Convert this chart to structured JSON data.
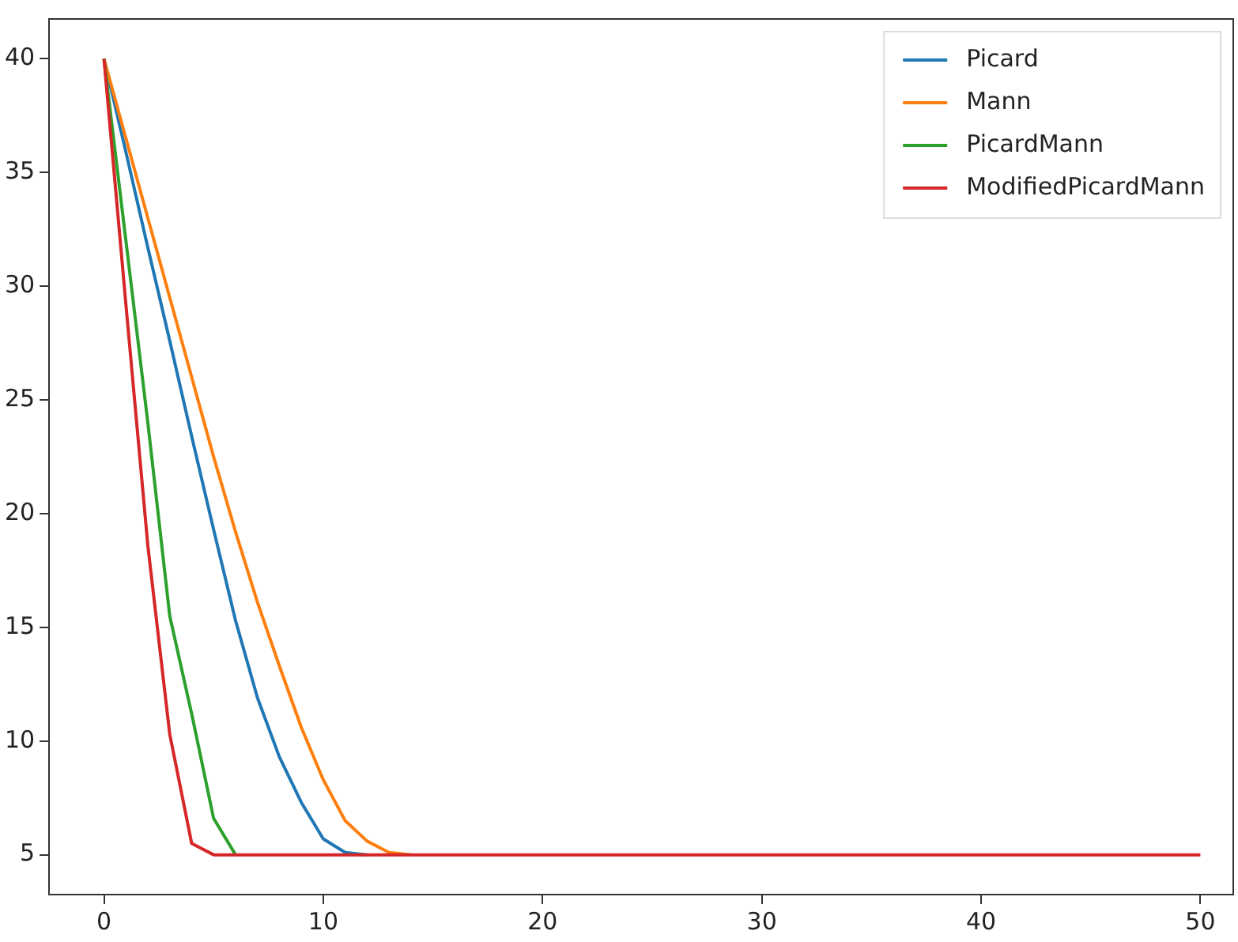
{
  "chart_data": {
    "type": "line",
    "x": [
      0,
      1,
      2,
      3,
      4,
      5,
      6,
      7,
      8,
      9,
      10,
      11,
      12,
      13,
      14,
      15,
      16,
      17,
      18,
      19,
      20,
      21,
      22,
      23,
      24,
      25,
      26,
      27,
      28,
      29,
      30,
      31,
      32,
      33,
      34,
      35,
      36,
      37,
      38,
      39,
      40,
      41,
      42,
      43,
      44,
      45,
      46,
      47,
      48,
      49,
      50
    ],
    "series": [
      {
        "name": "Picard",
        "color": "#1f77b4",
        "values": [
          40,
          35.9,
          31.7,
          27.6,
          23.4,
          19.3,
          15.3,
          11.9,
          9.3,
          7.3,
          5.7,
          5.1,
          5,
          null,
          null,
          null,
          null,
          null,
          null,
          null,
          null,
          null,
          null,
          null,
          null,
          null,
          null,
          null,
          null,
          null,
          null,
          null,
          null,
          null,
          null,
          null,
          null,
          null,
          null,
          null,
          null,
          null,
          null,
          null,
          null,
          null,
          null,
          null,
          null,
          null,
          null
        ]
      },
      {
        "name": "Mann",
        "color": "#ff7f0e",
        "values": [
          40,
          36.5,
          33,
          29.5,
          26,
          22.5,
          19.2,
          16.1,
          13.3,
          10.6,
          8.3,
          6.5,
          5.6,
          5.1,
          5,
          null,
          null,
          null,
          null,
          null,
          null,
          null,
          null,
          null,
          null,
          null,
          null,
          null,
          null,
          null,
          null,
          null,
          null,
          null,
          null,
          null,
          null,
          null,
          null,
          null,
          null,
          null,
          null,
          null,
          null,
          null,
          null,
          null,
          null,
          null,
          null
        ]
      },
      {
        "name": "PicardMann",
        "color": "#2ca02c",
        "values": [
          40,
          32,
          24,
          15.5,
          11.2,
          6.6,
          5,
          null,
          null,
          null,
          null,
          null,
          null,
          null,
          null,
          null,
          null,
          null,
          null,
          null,
          null,
          null,
          null,
          null,
          null,
          null,
          null,
          null,
          null,
          null,
          null,
          null,
          null,
          null,
          null,
          null,
          null,
          null,
          null,
          null,
          null,
          null,
          null,
          null,
          null,
          null,
          null,
          null,
          null,
          null,
          null
        ]
      },
      {
        "name": "ModifiedPicardMann",
        "color": "#d62728",
        "values": [
          40,
          29.2,
          18.6,
          10.3,
          5.5,
          5,
          5,
          5,
          5,
          5,
          5,
          5,
          5,
          5,
          5,
          5,
          5,
          5,
          5,
          5,
          5,
          5,
          5,
          5,
          5,
          5,
          5,
          5,
          5,
          5,
          5,
          5,
          5,
          5,
          5,
          5,
          5,
          5,
          5,
          5,
          5,
          5,
          5,
          5,
          5,
          5,
          5,
          5,
          5,
          5,
          5
        ]
      }
    ],
    "xlim": [
      -2.5,
      51.5
    ],
    "xticks": [
      0,
      10,
      20,
      30,
      40,
      50
    ],
    "ylim": [
      3.25,
      41.75
    ],
    "yticks": [
      5,
      10,
      15,
      20,
      25,
      30,
      35,
      40
    ],
    "grid": false,
    "legend": "top right",
    "marker": "none",
    "line_style": "solid"
  }
}
